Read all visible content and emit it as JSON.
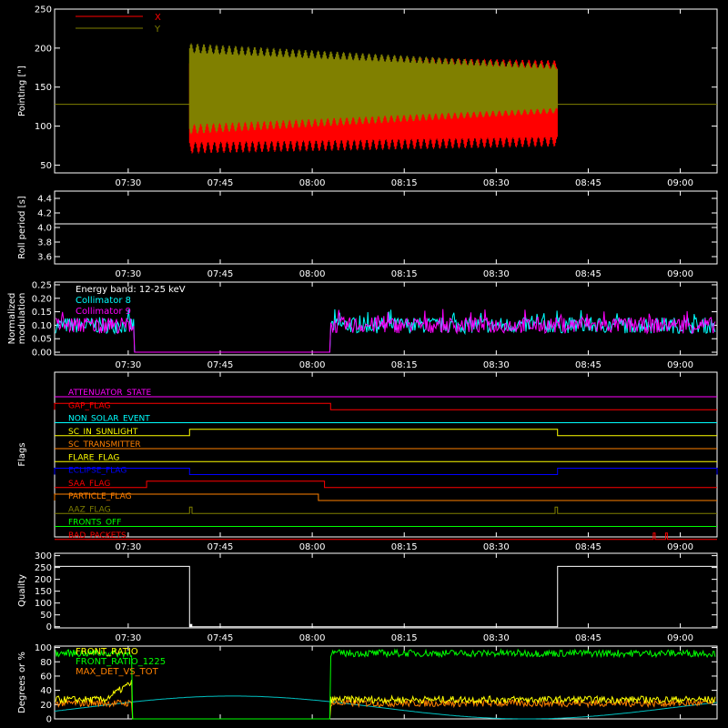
{
  "time_ticks": [
    "07:30",
    "07:45",
    "08:00",
    "08:15",
    "08:30",
    "08:45",
    "09:00"
  ],
  "chart_data": [
    {
      "type": "line",
      "ylabel": "Pointing [\"]",
      "ylim": [
        40,
        250
      ],
      "yticks": [
        "50",
        "100",
        "150",
        "200",
        "250"
      ],
      "legend": [
        {
          "name": "X",
          "color": "#ff0000"
        },
        {
          "name": "Y",
          "color": "#808000"
        }
      ],
      "reference_line": {
        "value": 128,
        "color": "#808000"
      },
      "x_range": [
        "07:18",
        "09:06"
      ],
      "active_range": [
        "07:40",
        "08:40"
      ],
      "series": [
        {
          "name": "X",
          "color": "#ff0000",
          "center": 132,
          "amp_start": 60,
          "amp_end": 52
        },
        {
          "name": "Y",
          "color": "#808000",
          "center": 148,
          "amp_start": 52,
          "amp_end": 28
        }
      ]
    },
    {
      "type": "line",
      "ylabel": "Roll period [s]",
      "ylim": [
        3.5,
        4.5
      ],
      "yticks": [
        "3.6",
        "3.8",
        "4.0",
        "4.2",
        "4.4"
      ],
      "series": [
        {
          "name": "",
          "color": "#ffffff",
          "value": 4.05
        }
      ]
    },
    {
      "type": "line",
      "ylabel": "Normalized modulation",
      "ylabel_lines": [
        "Normalized",
        "modulation"
      ],
      "ylim": [
        -0.01,
        0.26
      ],
      "yticks": [
        "0.00",
        "0.05",
        "0.10",
        "0.15",
        "0.20",
        "0.25"
      ],
      "legend": [
        {
          "name": "Energy band: 12-25 keV",
          "color": "#ffffff"
        },
        {
          "name": "Collimator 8",
          "color": "#00ffff"
        },
        {
          "name": "Collimator 9",
          "color": "#ff00ff"
        }
      ],
      "gap_range": [
        "07:31",
        "08:03"
      ],
      "series": [
        {
          "name": "Collimator 8",
          "color": "#00ffff",
          "mean": 0.1
        },
        {
          "name": "Collimator 9",
          "color": "#ff00ff",
          "mean": 0.1
        }
      ]
    },
    {
      "type": "line",
      "ylabel": "Flags",
      "flags": [
        {
          "name": "ATTENUATOR_STATE",
          "color": "#ff00ff",
          "high": []
        },
        {
          "name": "GAP_FLAG",
          "color": "#ff0000",
          "high": [
            [
              "07:18",
              "08:03"
            ]
          ]
        },
        {
          "name": "NON_SOLAR_EVENT",
          "color": "#00ffff",
          "high": []
        },
        {
          "name": "SC_IN_SUNLIGHT",
          "color": "#ffff00",
          "high": [
            [
              "07:40",
              "08:40"
            ]
          ]
        },
        {
          "name": "SC_TRANSMITTER",
          "color": "#ff8000",
          "high": []
        },
        {
          "name": "FLARE_FLAG",
          "color": "#ffff00",
          "high": []
        },
        {
          "name": "ECLIPSE_FLAG",
          "color": "#0000ff",
          "high": [
            [
              "07:18",
              "07:40"
            ],
            [
              "08:40",
              "09:06"
            ]
          ]
        },
        {
          "name": "SAA_FLAG",
          "color": "#ff0000",
          "high": [
            [
              "07:33",
              "08:02"
            ]
          ]
        },
        {
          "name": "PARTICLE_FLAG",
          "color": "#ff8000",
          "high": [
            [
              "07:18",
              "08:01"
            ]
          ]
        },
        {
          "name": "AAZ_FLAG",
          "color": "#808000",
          "high": [
            [
              "07:40",
              "07:40.4"
            ],
            [
              "08:39.6",
              "08:40"
            ]
          ]
        },
        {
          "name": "FRONTS_OFF",
          "color": "#00ff00",
          "high": []
        },
        {
          "name": "BAD_PACKETS",
          "color": "#ff0000",
          "high": [
            [
              "08:55.6",
              "08:55.9"
            ],
            [
              "08:57.6",
              "08:57.9"
            ]
          ]
        }
      ]
    },
    {
      "type": "line",
      "ylabel": "Quality",
      "ylim": [
        -5,
        310
      ],
      "yticks": [
        "0",
        "50",
        "100",
        "150",
        "200",
        "250",
        "300"
      ],
      "series": [
        {
          "name": "",
          "color": "#ffffff",
          "high_value": 255,
          "low_range": [
            "07:40",
            "08:40"
          ]
        }
      ]
    },
    {
      "type": "line",
      "ylabel": "Degrees or %",
      "ylim": [
        0,
        102
      ],
      "yticks": [
        "0",
        "20",
        "40",
        "60",
        "80",
        "100"
      ],
      "legend": [
        {
          "name": "FRONT_RATIO",
          "color": "#ffff00"
        },
        {
          "name": "FRONT_RATIO_1225",
          "color": "#00ff00"
        },
        {
          "name": "MAX_DET_VS_TOT",
          "color": "#ff8000"
        }
      ],
      "series": [
        {
          "name": "FRONT_RATIO",
          "color": "#ffff00",
          "mean": 27
        },
        {
          "name": "FRONT_RATIO_1225",
          "color": "#00ff00",
          "mean": 92
        },
        {
          "name": "MAX_DET_VS_TOT",
          "color": "#ff8000",
          "mean": 22
        },
        {
          "name": "",
          "color": "#00c0c0",
          "mean": 20
        }
      ]
    }
  ]
}
